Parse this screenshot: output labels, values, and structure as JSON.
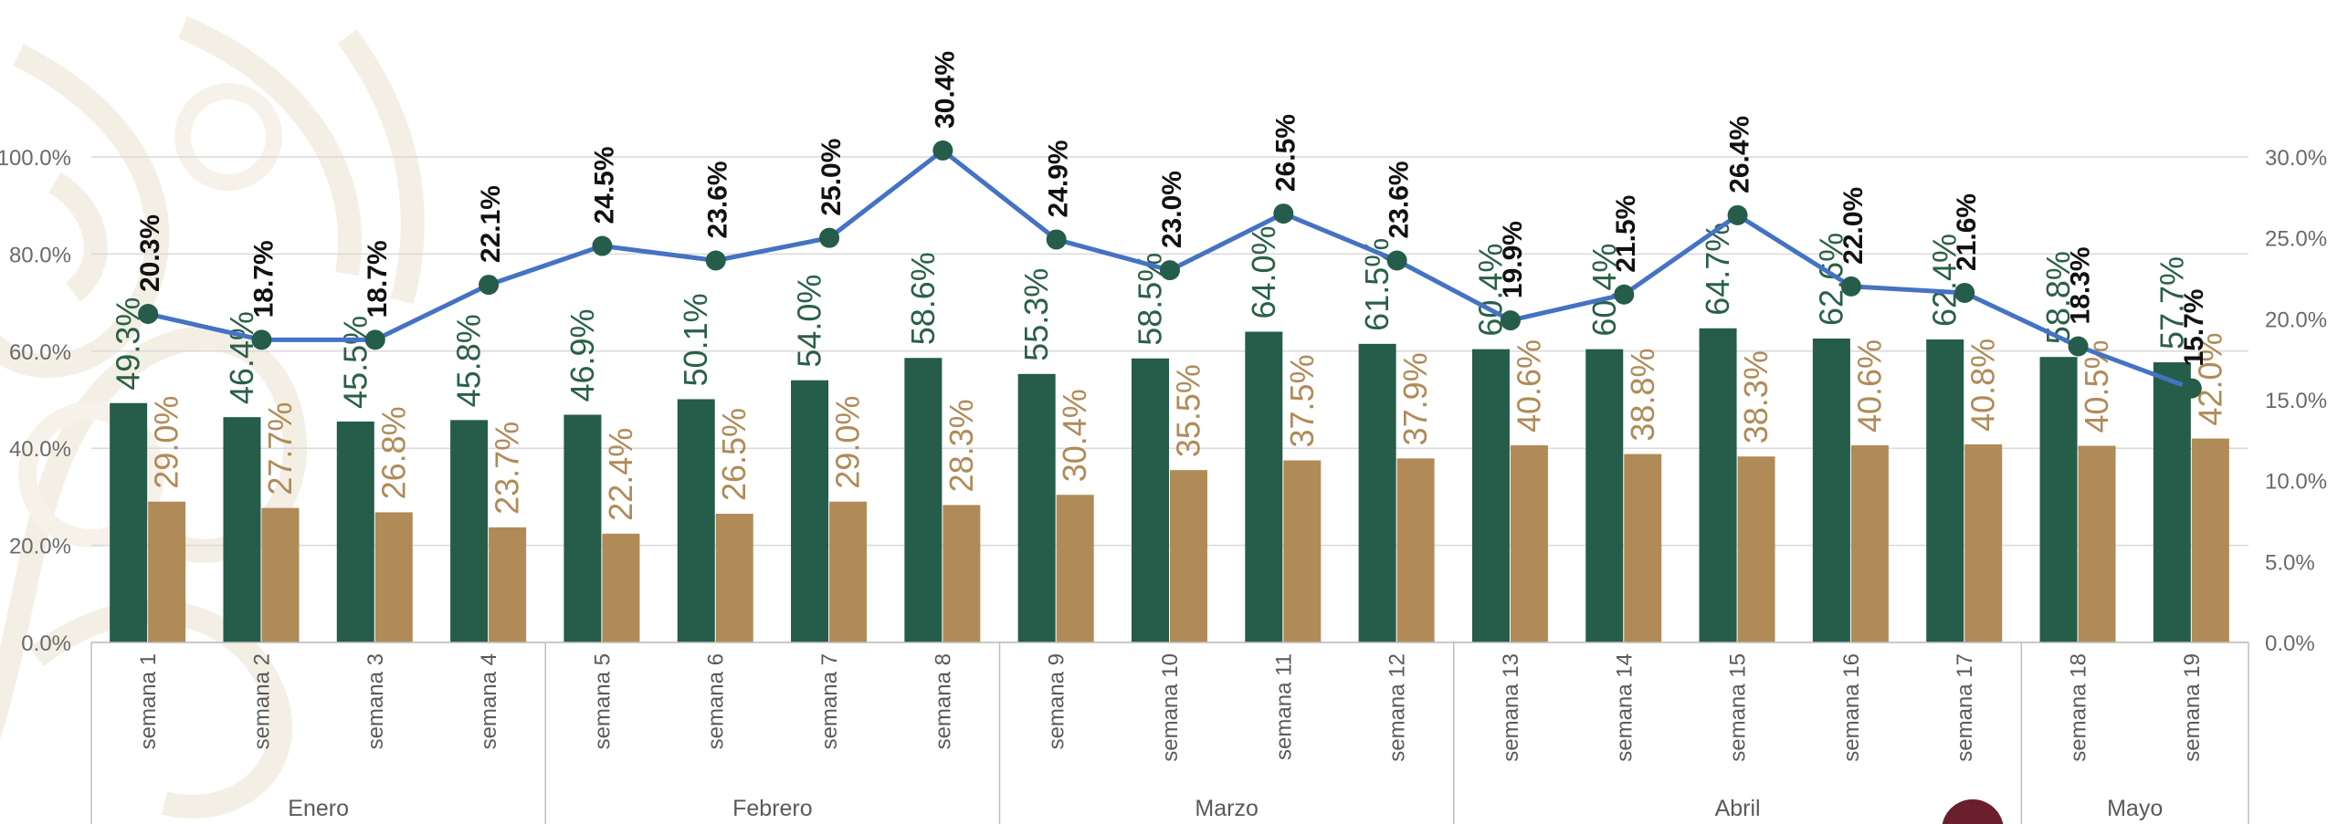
{
  "colors": {
    "series_green": "#255c4a",
    "series_gold": "#b08b58",
    "series_line": "#4472c4",
    "line_marker": "#255c4a",
    "grid": "#d9d9d9",
    "background_pattern": "#f3efe6"
  },
  "chart_data": {
    "type": "bar",
    "categories": [
      "semana 1",
      "semana 2",
      "semana 3",
      "semana 4",
      "semana 5",
      "semana 6",
      "semana 7",
      "semana 8",
      "semana 9",
      "semana 10",
      "semana 11",
      "semana 12",
      "semana 13",
      "semana 14",
      "semana 15",
      "semana 16",
      "semana 17",
      "semana 18",
      "semana 19"
    ],
    "groups": [
      {
        "label": "Enero",
        "span": 4
      },
      {
        "label": "Febrero",
        "span": 4
      },
      {
        "label": "Marzo",
        "span": 4
      },
      {
        "label": "Abril",
        "span": 5
      },
      {
        "label": "Mayo",
        "span": 2
      }
    ],
    "series": [
      {
        "type": "bar",
        "axis": "left",
        "values": [
          49.3,
          46.4,
          45.5,
          45.8,
          46.9,
          50.1,
          54.0,
          58.6,
          55.3,
          58.5,
          64.0,
          61.5,
          60.4,
          60.4,
          64.7,
          62.6,
          62.4,
          58.8,
          57.7
        ],
        "labels": [
          "49.3%",
          "46.4%",
          "45.5%",
          "45.8%",
          "46.9%",
          "50.1%",
          "54.0%",
          "58.6%",
          "55.3%",
          "58.5%",
          "64.0%",
          "61.5%",
          "60.4%",
          "60.4%",
          "64.7%",
          "62.6%",
          "62.4%",
          "58.8%",
          "57.7%"
        ]
      },
      {
        "type": "bar",
        "axis": "left",
        "values": [
          29.0,
          27.7,
          26.8,
          23.7,
          22.4,
          26.5,
          29.0,
          28.3,
          30.4,
          35.5,
          37.5,
          37.9,
          40.6,
          38.8,
          38.3,
          40.6,
          40.8,
          40.5,
          42.0
        ],
        "labels": [
          "29.0%",
          "27.7%",
          "26.8%",
          "23.7%",
          "22.4%",
          "26.5%",
          "29.0%",
          "28.3%",
          "30.4%",
          "35.5%",
          "37.5%",
          "37.9%",
          "40.6%",
          "38.8%",
          "38.3%",
          "40.6%",
          "40.8%",
          "40.5%",
          "42.0%"
        ]
      },
      {
        "type": "line",
        "axis": "right",
        "values": [
          20.3,
          18.7,
          18.7,
          22.1,
          24.5,
          23.6,
          25.0,
          30.4,
          24.9,
          23.0,
          26.5,
          23.6,
          19.9,
          21.5,
          26.4,
          22.0,
          21.6,
          18.3,
          15.7
        ],
        "labels": [
          "20.3%",
          "18.7%",
          "18.7%",
          "22.1%",
          "24.5%",
          "23.6%",
          "25.0%",
          "30.4%",
          "24.9%",
          "23.0%",
          "26.5%",
          "23.6%",
          "19.9%",
          "21.5%",
          "26.4%",
          "22.0%",
          "21.6%",
          "18.3%",
          "15.7%"
        ]
      }
    ],
    "y_left": {
      "min": 0,
      "max": 100,
      "ticks": [
        "0.0%",
        "20.0%",
        "40.0%",
        "60.0%",
        "80.0%",
        "100.0%"
      ]
    },
    "y_right": {
      "min": 0,
      "max": 30,
      "ticks": [
        "0.0%",
        "5.0%",
        "10.0%",
        "15.0%",
        "20.0%",
        "25.0%",
        "30.0%"
      ]
    },
    "grid": true,
    "legend": "none",
    "title": "",
    "xlabel": "",
    "ylabel": ""
  }
}
